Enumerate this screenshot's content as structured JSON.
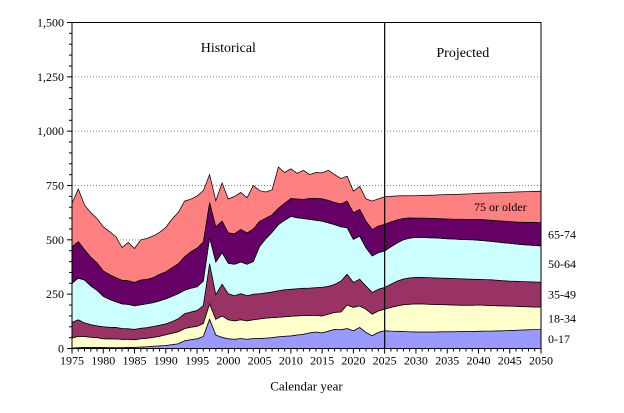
{
  "background": "#FFFFFF",
  "chart_data": {
    "type": "area",
    "stacked": true,
    "title": "",
    "xlabel": "Calendar year",
    "ylabel": "",
    "ylim": [
      0,
      1500
    ],
    "y_major_step": 250,
    "y_minor_step": 50,
    "y_tick_labels": [
      "0",
      "250",
      "500",
      "750",
      "1,000",
      "1,250",
      "1,500"
    ],
    "x_range": [
      1975,
      2050
    ],
    "x_label_step": 5,
    "x_tick_labels": [
      "1975",
      "1980",
      "1985",
      "1990",
      "1995",
      "2000",
      "2005",
      "2010",
      "2015",
      "2020",
      "2025",
      "2030",
      "2035",
      "2040",
      "2045",
      "2050"
    ],
    "grid": "horizontal-dotted",
    "divider_x": 2025,
    "regions": [
      {
        "label": "Historical"
      },
      {
        "label": "Projected"
      }
    ],
    "inside_label": {
      "text": "75 or older",
      "year": 2043.5
    },
    "series_labels_right": [
      "65-74",
      "50-64",
      "35-49",
      "18-34",
      "0-17"
    ],
    "x": [
      1975,
      1976,
      1977,
      1978,
      1979,
      1980,
      1981,
      1982,
      1983,
      1984,
      1985,
      1986,
      1987,
      1988,
      1989,
      1990,
      1991,
      1992,
      1993,
      1994,
      1995,
      1996,
      1997,
      1998,
      1999,
      2000,
      2001,
      2002,
      2003,
      2004,
      2005,
      2006,
      2007,
      2008,
      2009,
      2010,
      2011,
      2012,
      2013,
      2014,
      2015,
      2016,
      2017,
      2018,
      2019,
      2020,
      2021,
      2022,
      2023,
      2024,
      2025,
      2026,
      2027,
      2028,
      2029,
      2030,
      2031,
      2032,
      2033,
      2034,
      2035,
      2036,
      2037,
      2038,
      2039,
      2040,
      2041,
      2042,
      2043,
      2044,
      2045,
      2046,
      2047,
      2048,
      2049,
      2050
    ],
    "series": [
      {
        "name": "0-17",
        "color": "#9999FF",
        "values": [
          2,
          4,
          5,
          5,
          5,
          5,
          4,
          4,
          4,
          5,
          5,
          7,
          8,
          10,
          12,
          14,
          18,
          22,
          36,
          41,
          45,
          55,
          135,
          62,
          51,
          45,
          43,
          46,
          43,
          46,
          46,
          48,
          50,
          54,
          56,
          58,
          62,
          66,
          72,
          76,
          72,
          80,
          88,
          86,
          92,
          82,
          97,
          74,
          59,
          74,
          82,
          80,
          79,
          78,
          77,
          76,
          76,
          76,
          76,
          77,
          77,
          77,
          78,
          78,
          78,
          79,
          80,
          80,
          81,
          82,
          83,
          84,
          85,
          86,
          87,
          87
        ]
      },
      {
        "name": "18-34",
        "color": "#FFFFCC",
        "values": [
          46,
          52,
          50,
          47,
          45,
          40,
          40,
          40,
          38,
          38,
          35,
          38,
          39,
          41,
          44,
          49,
          52,
          55,
          56,
          57,
          57,
          60,
          70,
          73,
          99,
          87,
          84,
          86,
          84,
          86,
          90,
          92,
          92,
          90,
          90,
          90,
          88,
          86,
          81,
          76,
          78,
          78,
          78,
          82,
          108,
          107,
          99,
          107,
          99,
          99,
          99,
          109,
          117,
          123,
          127,
          129,
          129,
          128,
          127,
          125,
          124,
          123,
          121,
          121,
          121,
          121,
          119,
          118,
          116,
          114,
          112,
          110,
          108,
          106,
          104,
          104
        ]
      },
      {
        "name": "35-49",
        "color": "#993366",
        "values": [
          72,
          76,
          63,
          58,
          54,
          55,
          54,
          53,
          50,
          48,
          48,
          48,
          49,
          50,
          51,
          50,
          54,
          60,
          68,
          70,
          73,
          82,
          185,
          113,
          146,
          120,
          116,
          120,
          116,
          118,
          116,
          116,
          118,
          122,
          124,
          125,
          125,
          125,
          125,
          128,
          131,
          128,
          129,
          142,
          142,
          115,
          123,
          107,
          100,
          100,
          100,
          107,
          114,
          119,
          121,
          122,
          122,
          122,
          122,
          122,
          122,
          122,
          122,
          121,
          120,
          118,
          118,
          118,
          117,
          116,
          115,
          115,
          115,
          115,
          115,
          114
        ]
      },
      {
        "name": "50-64",
        "color": "#CCFFFF",
        "values": [
          180,
          192,
          197,
          178,
          164,
          140,
          128,
          118,
          113,
          112,
          108,
          108,
          110,
          110,
          112,
          115,
          116,
          115,
          108,
          109,
          109,
          113,
          120,
          150,
          145,
          140,
          145,
          146,
          145,
          150,
          218,
          249,
          275,
          304,
          320,
          335,
          327,
          321,
          316,
          310,
          305,
          292,
          275,
          250,
          214,
          198,
          198,
          176,
          168,
          168,
          168,
          172,
          176,
          180,
          183,
          184,
          184,
          184,
          184,
          183,
          182,
          182,
          181,
          181,
          181,
          180,
          179,
          177,
          176,
          175,
          174,
          172,
          170,
          169,
          168,
          167
        ]
      },
      {
        "name": "65-74",
        "color": "#660066",
        "values": [
          168,
          168,
          140,
          132,
          126,
          117,
          114,
          111,
          109,
          109,
          108,
          114,
          112,
          115,
          122,
          125,
          132,
          138,
          154,
          168,
          178,
          180,
          162,
          162,
          145,
          140,
          140,
          150,
          144,
          150,
          115,
          95,
          80,
          75,
          78,
          82,
          86,
          88,
          96,
          100,
          103,
          104,
          102,
          105,
          122,
          123,
          123,
          122,
          122,
          122,
          122,
          114,
          106,
          98,
          93,
          89,
          89,
          89,
          89,
          90,
          91,
          91,
          93,
          93,
          94,
          96,
          96,
          97,
          98,
          99,
          100,
          101,
          103,
          104,
          106,
          107
        ]
      },
      {
        "name": "75 or older",
        "color": "#FF8080",
        "values": [
          200,
          242,
          205,
          205,
          204,
          203,
          198,
          189,
          151,
          176,
          156,
          185,
          188,
          192,
          193,
          204,
          224,
          236,
          256,
          242,
          240,
          236,
          128,
          120,
          176,
          156,
          172,
          170,
          162,
          200,
          141,
          120,
          115,
          190,
          142,
          137,
          118,
          134,
          110,
          120,
          119,
          138,
          128,
          117,
          115,
          99,
          106,
          103,
          130,
          126,
          127,
          118,
          110,
          105,
          102,
          103,
          104,
          106,
          108,
          110,
          112,
          114,
          115,
          117,
          118,
          120,
          123,
          126,
          129,
          132,
          135,
          138,
          140,
          142,
          143,
          145
        ]
      }
    ],
    "styles": {
      "area_outline": "#000000",
      "gridline_color": "#808080",
      "axis_color": "#000000",
      "divider_color": "#000000"
    }
  }
}
